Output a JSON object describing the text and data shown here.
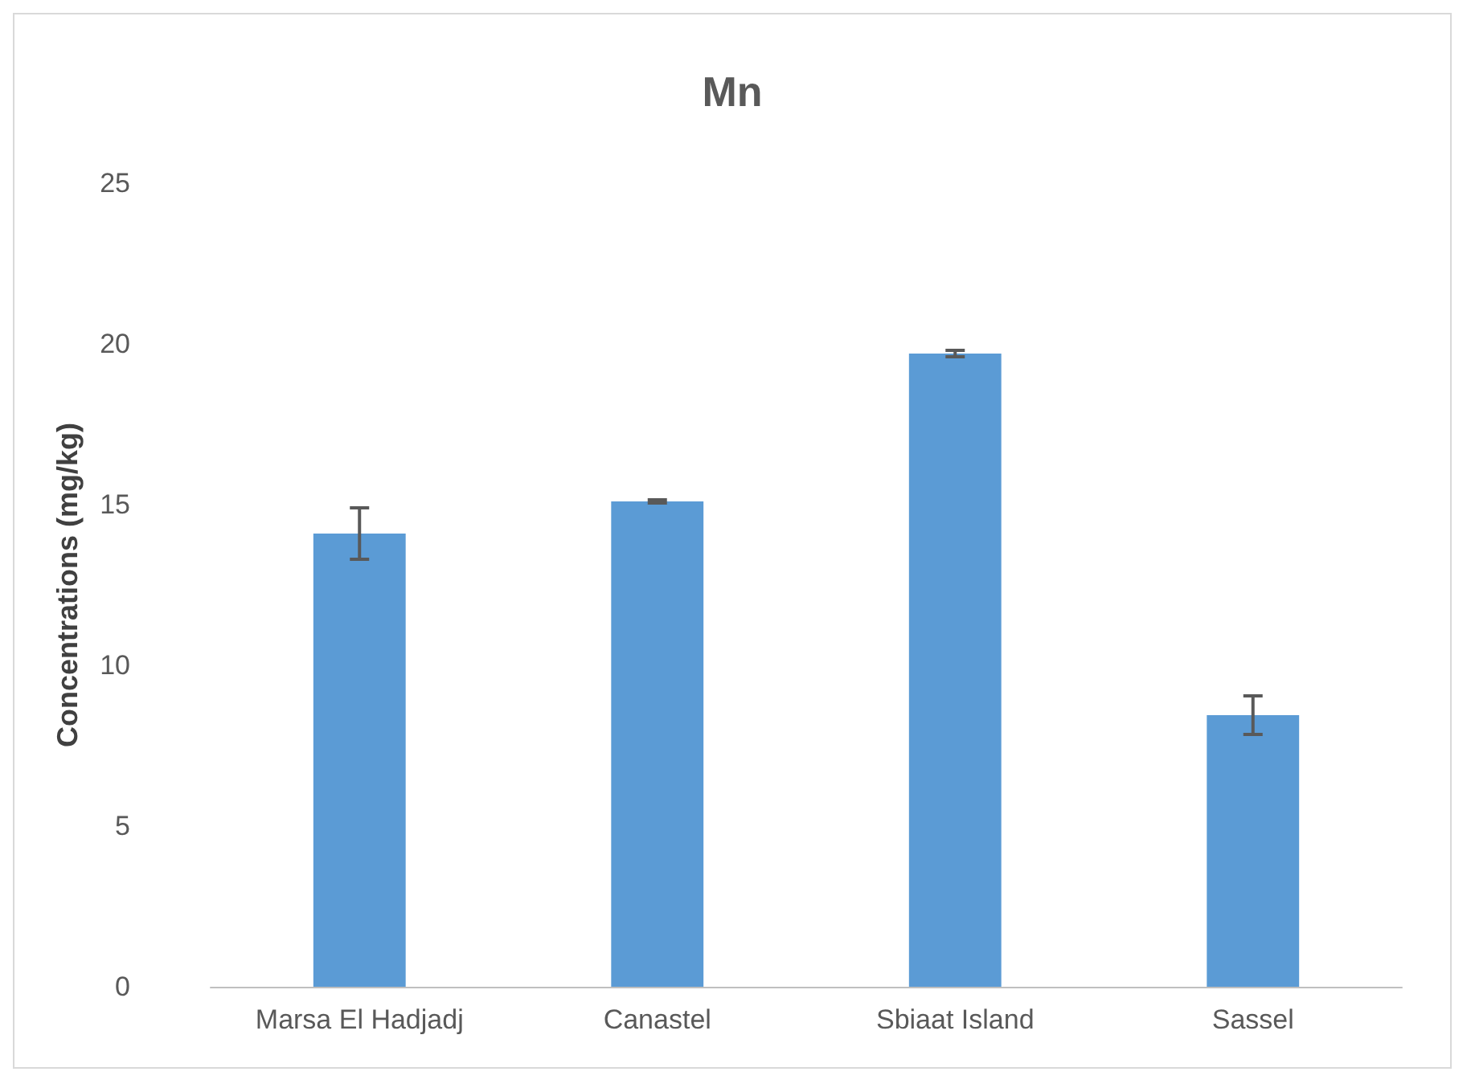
{
  "chart_data": {
    "type": "bar",
    "title": "Mn",
    "ylabel": "Concentrations (mg/kg)",
    "categories": [
      "Marsa El Hadjadj",
      "Canastel",
      "Sbiaat Island",
      "Sassel"
    ],
    "values": [
      14.1,
      15.1,
      19.7,
      8.45
    ],
    "errors": [
      0.8,
      0.05,
      0.1,
      0.6
    ],
    "color": "#5b9bd5",
    "ylim": [
      0,
      25
    ],
    "yticks": [
      0,
      5,
      10,
      15,
      20,
      25
    ],
    "grid": false
  }
}
